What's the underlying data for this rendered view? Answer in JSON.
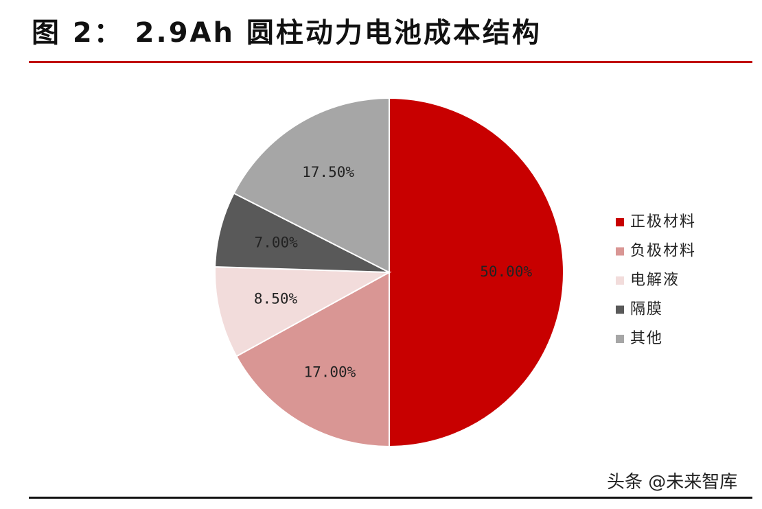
{
  "header": {
    "title": "图 2： 2.9Ah 圆柱动力电池成本结构"
  },
  "chart_data": {
    "type": "pie",
    "title": "",
    "start_angle_deg": 0,
    "direction": "clockwise",
    "legend_position": "right",
    "slices": [
      {
        "label": "正极材料",
        "value": 50.0,
        "display": "50.00%",
        "color": "#c80000"
      },
      {
        "label": "负极材料",
        "value": 17.0,
        "display": "17.00%",
        "color": "#d99694"
      },
      {
        "label": "电解液",
        "value": 8.5,
        "display": "8.50%",
        "color": "#f2dcdb"
      },
      {
        "label": "隔膜",
        "value": 7.0,
        "display": "7.00%",
        "color": "#595959"
      },
      {
        "label": "其他",
        "value": 17.5,
        "display": "17.50%",
        "color": "#a6a6a6"
      }
    ]
  },
  "watermark": {
    "text": "头条 @未来智库"
  }
}
